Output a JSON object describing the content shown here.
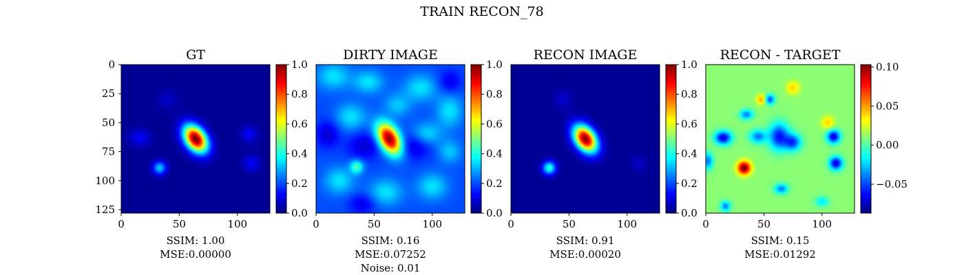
{
  "figure": {
    "suptitle": "TRAIN RECON_78"
  },
  "colors": {
    "jet": [
      "#00007f",
      "#0000ff",
      "#007fff",
      "#00ffff",
      "#7fff7f",
      "#ffff00",
      "#ff7f00",
      "#ff0000",
      "#7f0000"
    ]
  },
  "chart_data": [
    {
      "type": "heatmap",
      "title": "GT",
      "xticks": [
        "0",
        "50",
        "100"
      ],
      "yticks": [
        "0",
        "25",
        "50",
        "75",
        "100",
        "125"
      ],
      "xlim": [
        0,
        128
      ],
      "ylim": [
        128,
        0
      ],
      "colorbar": {
        "range": [
          0.0,
          1.0
        ],
        "ticks": [
          "0.0",
          "0.2",
          "0.4",
          "0.6",
          "0.8",
          "1.0"
        ]
      },
      "caption": [
        "SSIM: 1.00",
        "MSE:0.00000"
      ],
      "background": 0.02,
      "blobs": [
        {
          "x": 64,
          "y": 64,
          "value": 1.0,
          "sx": 6,
          "sy": 9,
          "angle": -35
        },
        {
          "x": 33,
          "y": 89,
          "value": 0.3,
          "sx": 4,
          "sy": 4,
          "angle": 0
        },
        {
          "x": 16,
          "y": 63,
          "value": 0.1,
          "sx": 6,
          "sy": 5,
          "angle": 0
        },
        {
          "x": 110,
          "y": 60,
          "value": 0.1,
          "sx": 5,
          "sy": 5,
          "angle": 0
        },
        {
          "x": 112,
          "y": 85,
          "value": 0.1,
          "sx": 5,
          "sy": 5,
          "angle": 0
        },
        {
          "x": 40,
          "y": 30,
          "value": 0.05,
          "sx": 6,
          "sy": 6,
          "angle": 0
        }
      ]
    },
    {
      "type": "heatmap",
      "title": "DIRTY IMAGE",
      "xticks": [
        "0",
        "50",
        "100"
      ],
      "xlim": [
        0,
        128
      ],
      "ylim": [
        128,
        0
      ],
      "colorbar": {
        "range": [
          0.0,
          1.0
        ],
        "ticks": [
          "0.0",
          "0.2",
          "0.4",
          "0.6",
          "0.8",
          "1.0"
        ]
      },
      "caption": [
        "SSIM: 0.16",
        "MSE:0.07252",
        "Noise: 0.01"
      ],
      "background": 0.2,
      "blobs": [
        {
          "x": 63,
          "y": 64,
          "value": 0.8,
          "sx": 6,
          "sy": 10,
          "angle": -30
        },
        {
          "x": 35,
          "y": 88,
          "value": 0.25,
          "sx": 4,
          "sy": 4,
          "angle": 0
        },
        {
          "x": 15,
          "y": 10,
          "value": 0.15,
          "sx": 10,
          "sy": 8,
          "angle": 0
        },
        {
          "x": 45,
          "y": 15,
          "value": 0.15,
          "sx": 9,
          "sy": 7,
          "angle": 0
        },
        {
          "x": 90,
          "y": 20,
          "value": 0.15,
          "sx": 10,
          "sy": 8,
          "angle": 0
        },
        {
          "x": 115,
          "y": 40,
          "value": 0.15,
          "sx": 8,
          "sy": 10,
          "angle": 0
        },
        {
          "x": 30,
          "y": 45,
          "value": 0.15,
          "sx": 9,
          "sy": 8,
          "angle": 0
        },
        {
          "x": 95,
          "y": 60,
          "value": 0.15,
          "sx": 9,
          "sy": 7,
          "angle": 0
        },
        {
          "x": 20,
          "y": 100,
          "value": 0.15,
          "sx": 9,
          "sy": 8,
          "angle": 0
        },
        {
          "x": 60,
          "y": 110,
          "value": 0.15,
          "sx": 10,
          "sy": 8,
          "angle": 0
        },
        {
          "x": 100,
          "y": 105,
          "value": 0.15,
          "sx": 9,
          "sy": 8,
          "angle": 0
        },
        {
          "x": 115,
          "y": 75,
          "value": 0.12,
          "sx": 7,
          "sy": 7,
          "angle": 0
        },
        {
          "x": 70,
          "y": 35,
          "value": 0.12,
          "sx": 8,
          "sy": 7,
          "angle": 0
        },
        {
          "x": 42,
          "y": 70,
          "value": -0.12,
          "sx": 10,
          "sy": 8,
          "angle": 0
        },
        {
          "x": 85,
          "y": 70,
          "value": -0.12,
          "sx": 10,
          "sy": 8,
          "angle": 0
        },
        {
          "x": 10,
          "y": 60,
          "value": -0.12,
          "sx": 7,
          "sy": 8,
          "angle": 0
        },
        {
          "x": 115,
          "y": 15,
          "value": -0.1,
          "sx": 7,
          "sy": 7,
          "angle": 0
        },
        {
          "x": 40,
          "y": 120,
          "value": -0.1,
          "sx": 8,
          "sy": 6,
          "angle": 0
        }
      ]
    },
    {
      "type": "heatmap",
      "title": "RECON IMAGE",
      "xticks": [
        "0",
        "50",
        "100"
      ],
      "xlim": [
        0,
        128
      ],
      "ylim": [
        128,
        0
      ],
      "colorbar": {
        "range": [
          0.0,
          1.0
        ],
        "ticks": [
          "0.0",
          "0.2",
          "0.4",
          "0.6",
          "0.8",
          "1.0"
        ]
      },
      "caption": [
        "SSIM: 0.91",
        "MSE:0.00020"
      ],
      "background": 0.02,
      "blobs": [
        {
          "x": 64,
          "y": 64,
          "value": 0.97,
          "sx": 6,
          "sy": 9,
          "angle": -35
        },
        {
          "x": 33,
          "y": 89,
          "value": 0.4,
          "sx": 4,
          "sy": 4,
          "angle": 0
        },
        {
          "x": 45,
          "y": 30,
          "value": 0.05,
          "sx": 6,
          "sy": 6,
          "angle": 0
        },
        {
          "x": 110,
          "y": 85,
          "value": 0.05,
          "sx": 5,
          "sy": 5,
          "angle": 0
        }
      ]
    },
    {
      "type": "heatmap",
      "title": "RECON - TARGET",
      "xticks": [
        "0",
        "50",
        "100"
      ],
      "xlim": [
        0,
        128
      ],
      "ylim": [
        128,
        0
      ],
      "colorbar": {
        "range": [
          -0.087,
          0.103
        ],
        "ticks": [
          "−0.05",
          "0.00",
          "0.05",
          "0.10"
        ]
      },
      "caption": [
        "SSIM: 0.15",
        "MSE:0.01292"
      ],
      "background": 0.01,
      "blobs": [
        {
          "x": 33,
          "y": 89,
          "value": 0.095,
          "sx": 4,
          "sy": 4,
          "angle": 0
        },
        {
          "x": 48,
          "y": 30,
          "value": 0.04,
          "sx": 3,
          "sy": 3,
          "angle": 0
        },
        {
          "x": 75,
          "y": 20,
          "value": 0.03,
          "sx": 4,
          "sy": 4,
          "angle": 0
        },
        {
          "x": 105,
          "y": 50,
          "value": 0.03,
          "sx": 4,
          "sy": 4,
          "angle": 0
        },
        {
          "x": 15,
          "y": 63,
          "value": -0.08,
          "sx": 5,
          "sy": 4,
          "angle": 0
        },
        {
          "x": 110,
          "y": 62,
          "value": -0.08,
          "sx": 4,
          "sy": 4,
          "angle": 0
        },
        {
          "x": 112,
          "y": 85,
          "value": -0.08,
          "sx": 4,
          "sy": 4,
          "angle": 0
        },
        {
          "x": 55,
          "y": 30,
          "value": -0.06,
          "sx": 3,
          "sy": 3,
          "angle": 0
        },
        {
          "x": 35,
          "y": 43,
          "value": -0.05,
          "sx": 4,
          "sy": 3,
          "angle": 0
        },
        {
          "x": 63,
          "y": 62,
          "value": -0.07,
          "sx": 6,
          "sy": 8,
          "angle": 0
        },
        {
          "x": 75,
          "y": 67,
          "value": -0.06,
          "sx": 5,
          "sy": 5,
          "angle": 0
        },
        {
          "x": 45,
          "y": 62,
          "value": -0.05,
          "sx": 5,
          "sy": 4,
          "angle": 0
        },
        {
          "x": 65,
          "y": 107,
          "value": -0.05,
          "sx": 4,
          "sy": 3,
          "angle": 0
        },
        {
          "x": 17,
          "y": 122,
          "value": -0.05,
          "sx": 3,
          "sy": 3,
          "angle": 0
        },
        {
          "x": 100,
          "y": 118,
          "value": -0.03,
          "sx": 4,
          "sy": 3,
          "angle": 0
        },
        {
          "x": 2,
          "y": 83,
          "value": -0.05,
          "sx": 3,
          "sy": 5,
          "angle": 0
        }
      ]
    }
  ]
}
